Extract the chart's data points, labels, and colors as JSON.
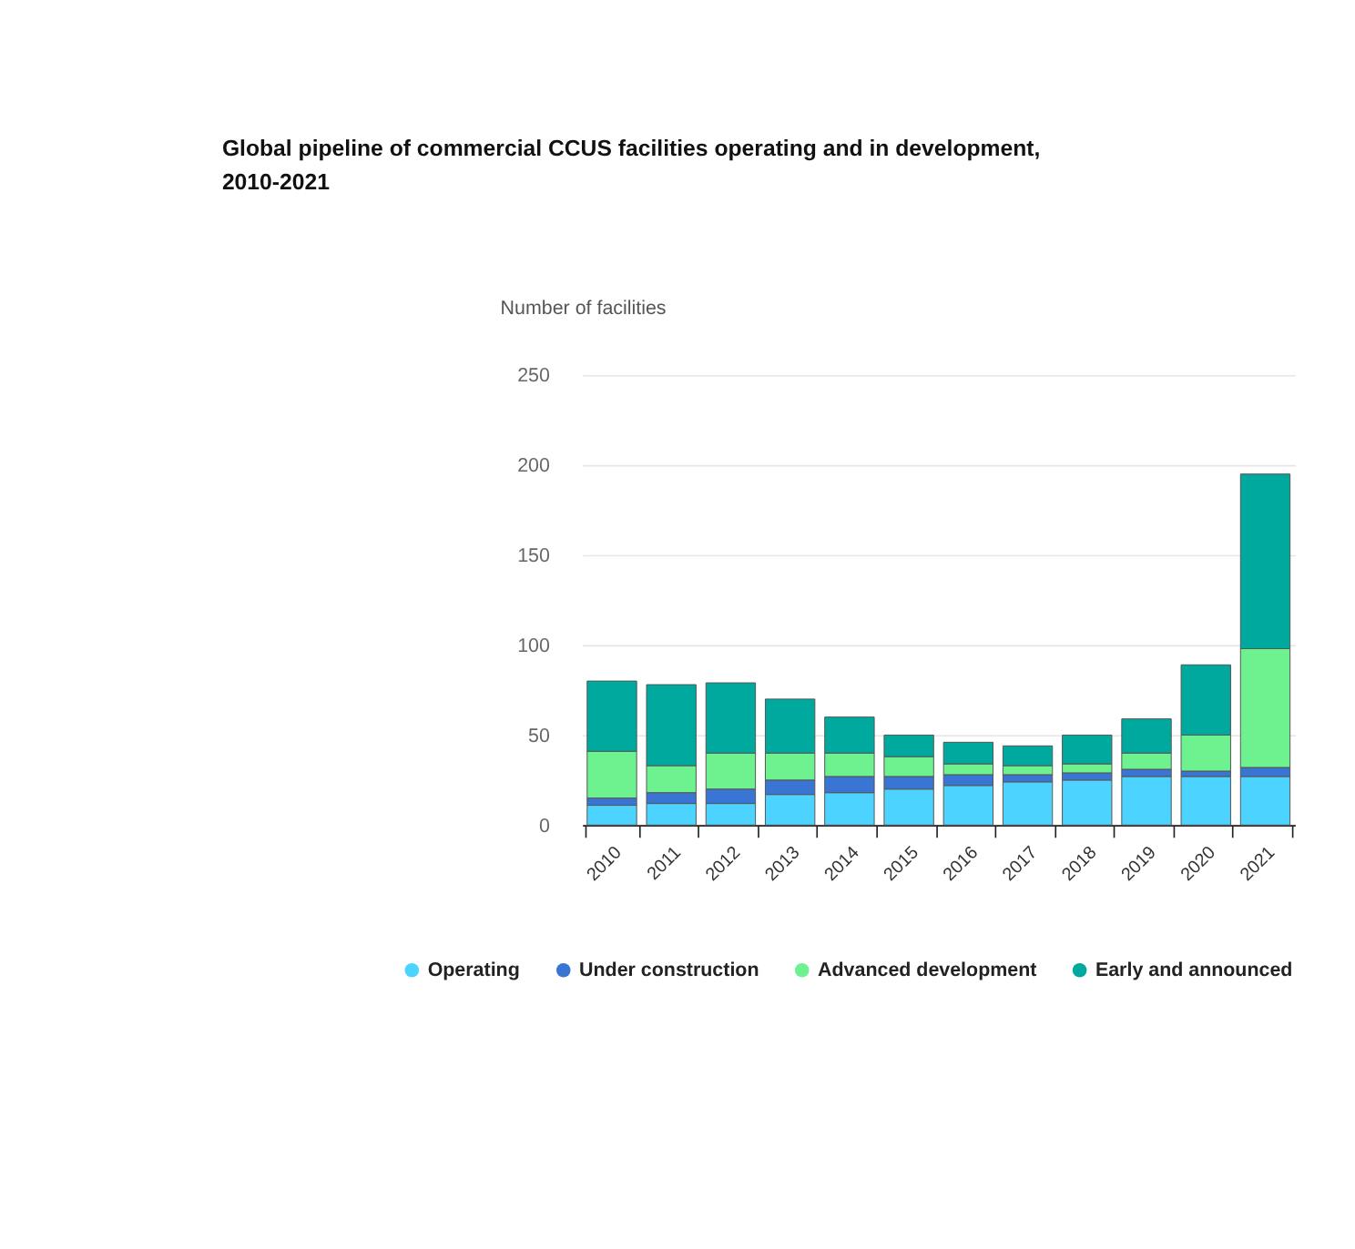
{
  "chart_data": {
    "type": "bar",
    "title": "Global pipeline of commercial CCUS facilities operating and in development, 2010-2021",
    "ylabel": "Number of facilities",
    "categories": [
      "2010",
      "2011",
      "2012",
      "2013",
      "2014",
      "2015",
      "2016",
      "2017",
      "2018",
      "2019",
      "2020",
      "2021"
    ],
    "stacked": true,
    "ylim": [
      0,
      250
    ],
    "yticks": [
      0,
      50,
      100,
      150,
      200,
      250
    ],
    "grid": "y",
    "legend": "bottom left",
    "series": [
      {
        "name": "Operating",
        "color": "#4dd3ff",
        "values": [
          11,
          12,
          12,
          17,
          18,
          20,
          22,
          24,
          25,
          27,
          27,
          27
        ]
      },
      {
        "name": "Under construction",
        "color": "#3a75d4",
        "values": [
          4,
          6,
          8,
          8,
          9,
          7,
          6,
          4,
          4,
          4,
          3,
          5
        ]
      },
      {
        "name": "Advanced development",
        "color": "#6ef28f",
        "values": [
          26,
          15,
          20,
          15,
          13,
          11,
          6,
          5,
          5,
          9,
          20,
          66
        ]
      },
      {
        "name": "Early and announced",
        "color": "#00a99d",
        "values": [
          39,
          45,
          39,
          30,
          20,
          12,
          12,
          11,
          16,
          19,
          39,
          97
        ]
      }
    ]
  }
}
